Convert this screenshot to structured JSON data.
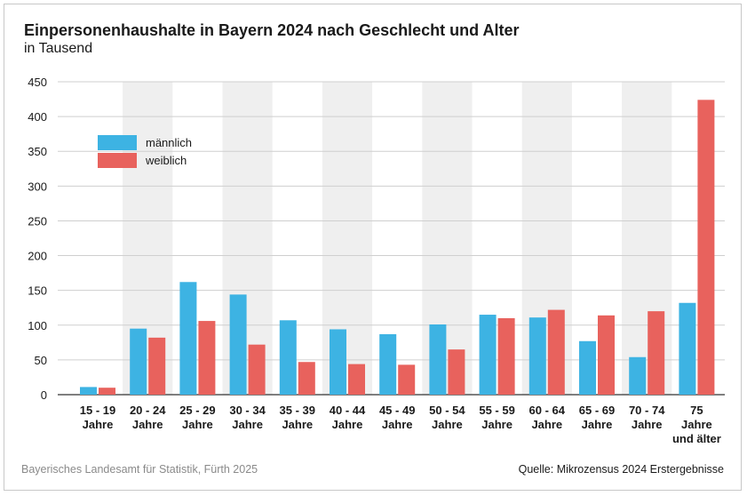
{
  "chart_data": {
    "type": "bar",
    "title": "Einpersonenhaushalte in Bayern 2024 nach Geschlecht und Alter",
    "subtitle": "in Tausend",
    "categories": [
      [
        "15 - 19",
        "Jahre"
      ],
      [
        "20 - 24",
        "Jahre"
      ],
      [
        "25 - 29",
        "Jahre"
      ],
      [
        "30 - 34",
        "Jahre"
      ],
      [
        "35 - 39",
        "Jahre"
      ],
      [
        "40 - 44",
        "Jahre"
      ],
      [
        "45 - 49",
        "Jahre"
      ],
      [
        "50 - 54",
        "Jahre"
      ],
      [
        "55 - 59",
        "Jahre"
      ],
      [
        "60 - 64",
        "Jahre"
      ],
      [
        "65 - 69",
        "Jahre"
      ],
      [
        "70 - 74",
        "Jahre"
      ],
      [
        "75",
        "Jahre",
        "und älter"
      ]
    ],
    "series": [
      {
        "name": "männlich",
        "color": "#3db3e3",
        "values": [
          11,
          95,
          162,
          144,
          107,
          94,
          87,
          101,
          115,
          111,
          77,
          54,
          132
        ]
      },
      {
        "name": "weiblich",
        "color": "#e8625d",
        "values": [
          10,
          82,
          106,
          72,
          47,
          44,
          43,
          65,
          110,
          122,
          114,
          120,
          424
        ]
      }
    ],
    "ylim": [
      0,
      450
    ],
    "yticks": [
      0,
      50,
      100,
      150,
      200,
      250,
      300,
      350,
      400,
      450
    ],
    "grid": true,
    "band_color": "#efefef",
    "legend_position": "top-left"
  },
  "footer": {
    "source_left": "Bayerisches Landesamt für Statistik, Fürth 2025",
    "source_right": "Quelle: Mikrozensus 2024 Erstergebnisse"
  }
}
